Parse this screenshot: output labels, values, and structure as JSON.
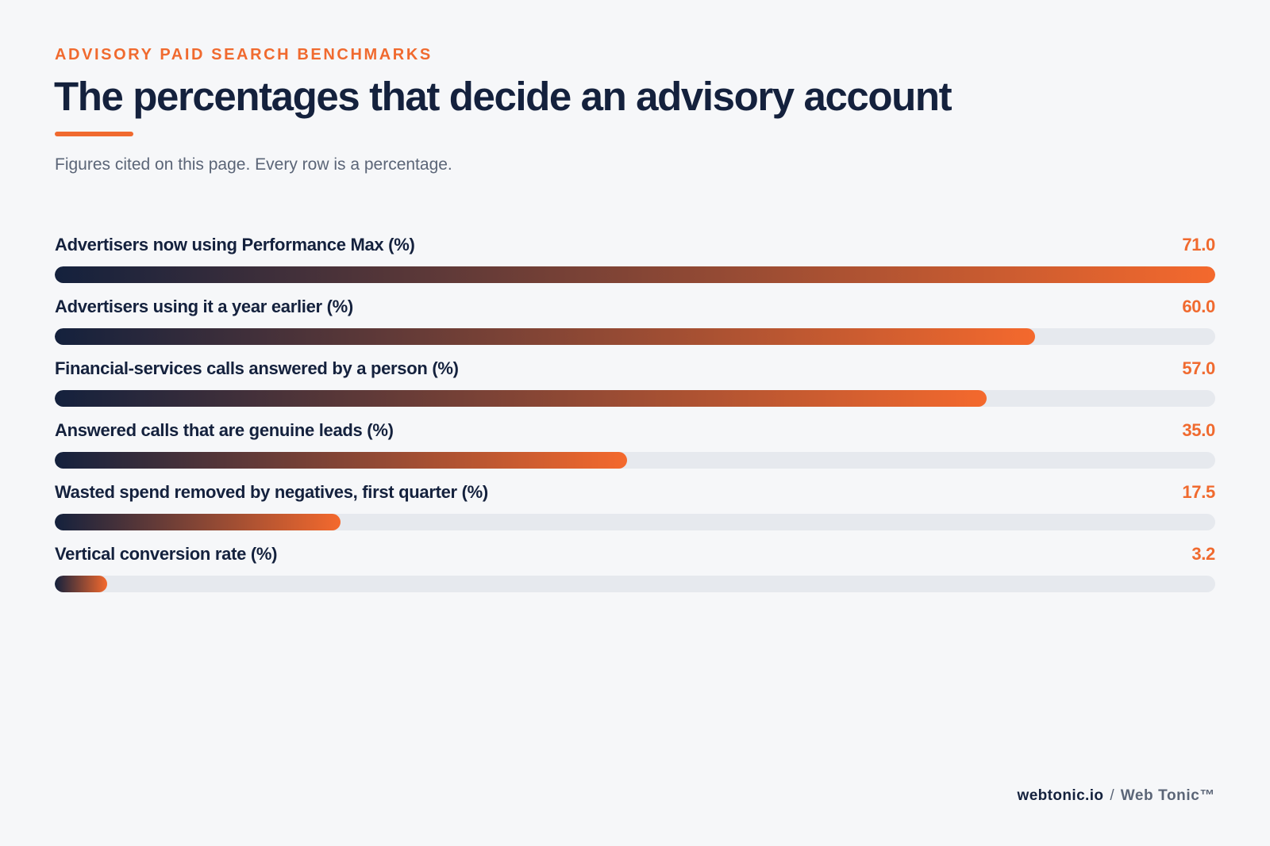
{
  "header": {
    "eyebrow": "ADVISORY PAID SEARCH BENCHMARKS",
    "title": "The percentages that decide an advisory account",
    "subtitle": "Figures cited on this page. Every row is a percentage."
  },
  "colors": {
    "accent": "#f06a2f",
    "navy": "#14213d",
    "track": "#e6e9ee"
  },
  "chart_data": {
    "type": "bar",
    "orientation": "horizontal",
    "title": "The percentages that decide an advisory account",
    "xlim": [
      0,
      71.0
    ],
    "grid": false,
    "categories": [
      "Advertisers now using Performance Max (%)",
      "Advertisers using it a year earlier (%)",
      "Financial-services calls answered by a person (%)",
      "Answered calls that are genuine leads (%)",
      "Wasted spend removed by negatives, first quarter (%)",
      "Vertical conversion rate (%)"
    ],
    "values": [
      71.0,
      60.0,
      57.0,
      35.0,
      17.5,
      3.2
    ],
    "value_labels": [
      "71.0",
      "60.0",
      "57.0",
      "35.0",
      "17.5",
      "3.2"
    ]
  },
  "footer": {
    "site": "webtonic.io",
    "separator": "/",
    "brand": "Web Tonic™"
  }
}
